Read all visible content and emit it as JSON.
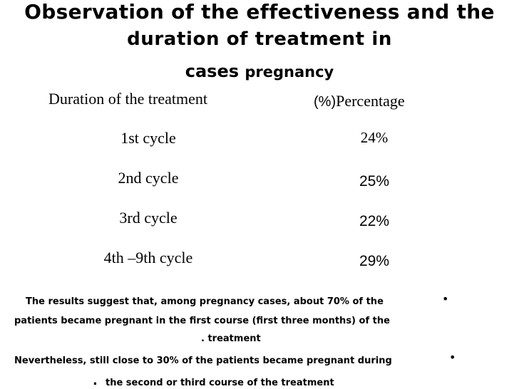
{
  "slide": {
    "title_line1": "Observation of the effectiveness and the",
    "title_line2": "duration of treatment in",
    "title_line3_a": "cases",
    "title_line3_b": "pregnancy"
  },
  "table": {
    "headers": {
      "duration": "Duration of the treatment",
      "percentage_symbol": "(%)",
      "percentage_label": "Percentage"
    },
    "rows": [
      {
        "duration": "1st cycle",
        "percentage": "24%"
      },
      {
        "duration": "2nd cycle",
        "percentage": "25%"
      },
      {
        "duration": "3rd cycle",
        "percentage": "22%"
      },
      {
        "duration": "4th –9th cycle",
        "percentage": "29%"
      }
    ]
  },
  "notes": {
    "bullet_symbol": "•",
    "note1_line1": "The results suggest that, among pregnancy cases, about 70% of the",
    "note1_line2": "patients became pregnant in the first course (first three months) of the",
    "note1_line3": ". treatment",
    "note2_line1": "Nevertheless, still close to 30% of the patients became pregnant during",
    "note2_dot": ".",
    "note2_line2": "the second or third course of the treatment"
  }
}
